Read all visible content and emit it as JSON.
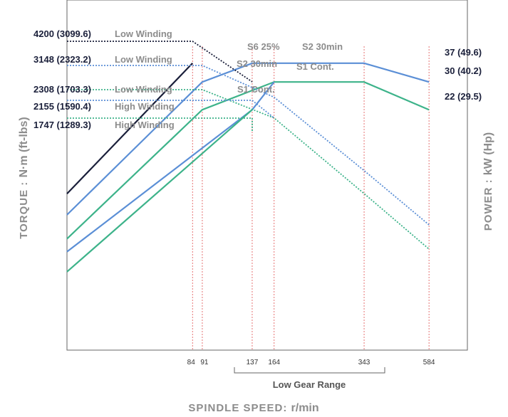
{
  "chart_data": {
    "type": "line",
    "title": "",
    "xlabel_prefix": "SPINDLE SPEED: ",
    "xlabel_unit": "r/min",
    "ylabel_left_prefix": "TORQUE : ",
    "ylabel_left_unit": "N·m (ft-lbs)",
    "ylabel_right_prefix": "POWER : ",
    "ylabel_right_unit": "kW (Hp)",
    "x_scale": "log",
    "x_ticks": [
      84,
      91,
      137,
      164,
      343,
      584
    ],
    "x_range_label": "Low Gear Range",
    "torque_labels": [
      {
        "value": "4200 (3099.6)",
        "winding": "Low Winding"
      },
      {
        "value": "3148 (2323.2)",
        "winding": "Low Winding"
      },
      {
        "value": "2308 (1703.3)",
        "winding": "Low Winding"
      },
      {
        "value": "2155 (1590.4)",
        "winding": "High Winding"
      },
      {
        "value": "1747 (1289.3)",
        "winding": "High Winding"
      }
    ],
    "power_labels": [
      "37 (49.6)",
      "30 (40.2)",
      "22 (29.5)"
    ],
    "curve_labels": [
      "S6 25%",
      "S2 30min",
      "S2 30min",
      "S1 Cont.",
      "S1 Cont."
    ],
    "series": [
      {
        "kind": "power",
        "color": "#1a1f3a",
        "points": [
          [
            30,
            8.6
          ],
          [
            84,
            37
          ]
        ]
      },
      {
        "kind": "power",
        "color": "#5b8fd6",
        "points": [
          [
            30,
            6.8
          ],
          [
            91,
            30
          ],
          [
            137,
            37
          ],
          [
            343,
            37
          ],
          [
            584,
            30
          ]
        ]
      },
      {
        "kind": "power",
        "color": "#3db38a",
        "points": [
          [
            30,
            5.2
          ],
          [
            91,
            22
          ],
          [
            164,
            30
          ],
          [
            343,
            30
          ],
          [
            584,
            22
          ]
        ]
      },
      {
        "kind": "power",
        "color": "#5b8fd6",
        "points": [
          [
            30,
            4.5
          ],
          [
            137,
            22
          ],
          [
            164,
            30
          ]
        ]
      },
      {
        "kind": "power",
        "color": "#3db38a",
        "points": [
          [
            30,
            3.6
          ],
          [
            137,
            22
          ]
        ]
      },
      {
        "kind": "torque",
        "color": "#1a1f3a",
        "points": [
          [
            30,
            4200
          ],
          [
            84,
            4200
          ],
          [
            137,
            2580
          ]
        ]
      },
      {
        "kind": "torque",
        "color": "#5b8fd6",
        "points": [
          [
            30,
            3148
          ],
          [
            91,
            3148
          ],
          [
            164,
            2200
          ],
          [
            343,
            1050
          ],
          [
            584,
            620
          ]
        ]
      },
      {
        "kind": "torque",
        "color": "#3db38a",
        "points": [
          [
            30,
            2308
          ],
          [
            91,
            2308
          ],
          [
            164,
            1750
          ],
          [
            343,
            840
          ],
          [
            584,
            490
          ]
        ]
      },
      {
        "kind": "torque",
        "color": "#5b8fd6",
        "points": [
          [
            30,
            2155
          ],
          [
            137,
            2155
          ],
          [
            164,
            1750
          ]
        ]
      },
      {
        "kind": "torque",
        "color": "#3db38a",
        "points": [
          [
            30,
            1747
          ],
          [
            137,
            1747
          ],
          [
            137,
            1530
          ]
        ]
      }
    ],
    "grid": false,
    "reference_line_color": "#e05050"
  }
}
